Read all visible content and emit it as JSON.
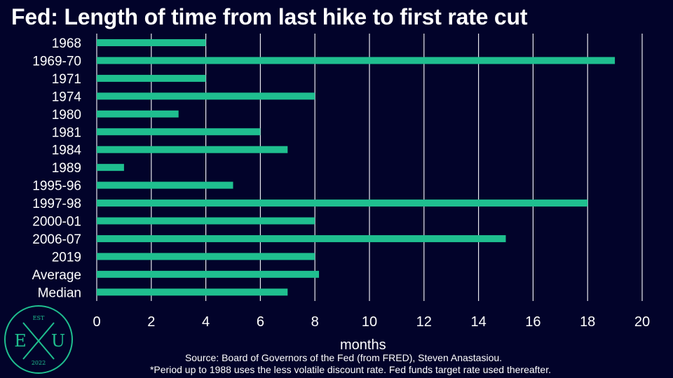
{
  "chart_data": {
    "type": "bar",
    "orientation": "horizontal",
    "title": "Fed: Length of time from last hike to first rate cut",
    "xlabel": "months",
    "ylabel": "",
    "categories": [
      "1968",
      "1969-70",
      "1971",
      "1974",
      "1980",
      "1981",
      "1984",
      "1989",
      "1995-96",
      "1997-98",
      "2000-01",
      "2006-07",
      "2019",
      "Average",
      "Median"
    ],
    "values": [
      4,
      19,
      4,
      8,
      3,
      6,
      7,
      1,
      5,
      18,
      8,
      15,
      8,
      8.15,
      7
    ],
    "xlim": [
      0,
      20
    ],
    "xticks": [
      0,
      2,
      4,
      6,
      8,
      10,
      12,
      14,
      16,
      18,
      20
    ],
    "grid": "vertical",
    "bar_color": "#1fbf8f",
    "background_color": "#02032a"
  },
  "footer": {
    "source": "Source: Board of Governors of the Fed (from FRED), Steven Anastasiou.",
    "note": "*Period up to 1988 uses the less volatile discount rate. Fed funds target rate used thereafter."
  },
  "logo": {
    "top_text": "EST",
    "left_letter": "E",
    "right_letter": "U",
    "bottom_text": "2022",
    "color": "#1fbf8f"
  }
}
